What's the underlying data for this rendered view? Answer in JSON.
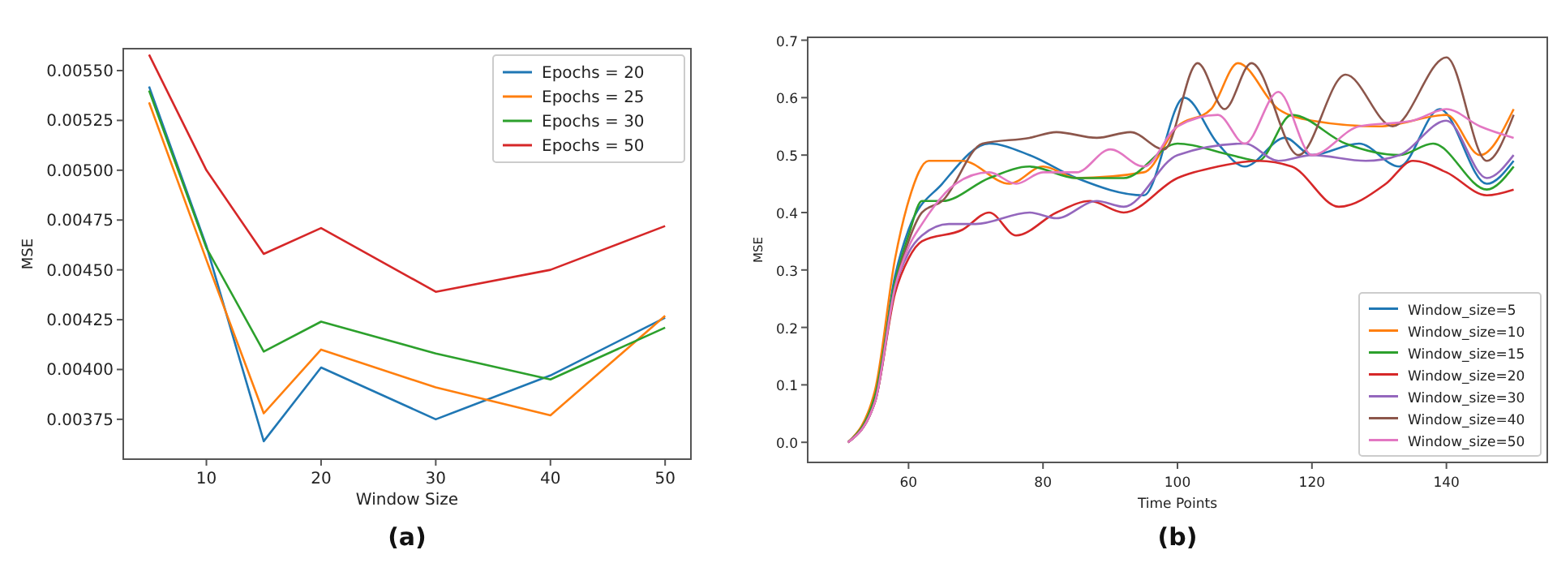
{
  "chart_data": [
    {
      "type": "line",
      "xlabel": "Window Size",
      "ylabel": "MSE",
      "x": [
        5,
        10,
        15,
        20,
        30,
        40,
        50
      ],
      "xlim": [
        2.75,
        52.25
      ],
      "ylim": [
        0.00355,
        0.00561
      ],
      "xticks": [
        10,
        20,
        30,
        40,
        50
      ],
      "yticks": [
        {
          "value": 0.00375,
          "label": "0.00375"
        },
        {
          "value": 0.004,
          "label": "0.00400"
        },
        {
          "value": 0.00425,
          "label": "0.00425"
        },
        {
          "value": 0.0045,
          "label": "0.00450"
        },
        {
          "value": 0.00475,
          "label": "0.00475"
        },
        {
          "value": 0.005,
          "label": "0.00500"
        },
        {
          "value": 0.00525,
          "label": "0.00525"
        },
        {
          "value": 0.0055,
          "label": "0.00550"
        }
      ],
      "legend": "top right",
      "annotations": [
        "(a)"
      ],
      "series": [
        {
          "name": "Epochs = 20",
          "color": "#1f77b4",
          "values": [
            0.00542,
            0.00462,
            0.00364,
            0.00401,
            0.00375,
            0.00397,
            0.00426
          ]
        },
        {
          "name": "Epochs = 25",
          "color": "#ff7f0e",
          "values": [
            0.00534,
            0.00455,
            0.00378,
            0.0041,
            0.00391,
            0.00377,
            0.00427
          ]
        },
        {
          "name": "Epochs = 30",
          "color": "#2ca02c",
          "values": [
            0.0054,
            0.00461,
            0.00409,
            0.00424,
            0.00408,
            0.00395,
            0.00421
          ]
        },
        {
          "name": "Epochs = 50",
          "color": "#d62728",
          "values": [
            0.00558,
            0.005,
            0.00458,
            0.00471,
            0.00439,
            0.0045,
            0.00472
          ]
        }
      ]
    },
    {
      "type": "line",
      "xlabel": "Time Points",
      "ylabel": "MSE",
      "xlim": [
        45,
        155
      ],
      "ylim": [
        -0.035,
        0.705
      ],
      "xticks": [
        60,
        80,
        100,
        120,
        140
      ],
      "yticks": [
        {
          "value": 0,
          "label": "0.0"
        },
        {
          "value": 0.1,
          "label": "0.1"
        },
        {
          "value": 0.2,
          "label": "0.2"
        },
        {
          "value": 0.3,
          "label": "0.3"
        },
        {
          "value": 0.4,
          "label": "0.4"
        },
        {
          "value": 0.5,
          "label": "0.5"
        },
        {
          "value": 0.6,
          "label": "0.6"
        },
        {
          "value": 0.7,
          "label": "0.7"
        }
      ],
      "legend": "bottom right",
      "annotations": [
        "(b)"
      ],
      "series": [
        {
          "name": "Window_size=5",
          "color": "#1f77b4",
          "x": [
            51,
            55,
            58,
            60,
            65,
            72,
            78,
            85,
            95,
            101,
            106,
            110,
            116,
            120,
            127,
            133,
            139,
            146,
            150
          ],
          "values": [
            0,
            0.08,
            0.29,
            0.37,
            0.45,
            0.52,
            0.5,
            0.46,
            0.43,
            0.6,
            0.52,
            0.48,
            0.53,
            0.5,
            0.52,
            0.48,
            0.58,
            0.45,
            0.49
          ]
        },
        {
          "name": "Window_size=10",
          "color": "#ff7f0e",
          "x": [
            51,
            55,
            58,
            60,
            63,
            68,
            75,
            80,
            85,
            95,
            100,
            105,
            109,
            115,
            120,
            130,
            140,
            145,
            150
          ],
          "values": [
            0,
            0.09,
            0.32,
            0.42,
            0.49,
            0.49,
            0.45,
            0.48,
            0.46,
            0.47,
            0.55,
            0.58,
            0.66,
            0.58,
            0.56,
            0.55,
            0.57,
            0.5,
            0.58
          ]
        },
        {
          "name": "Window_size=15",
          "color": "#2ca02c",
          "x": [
            51,
            55,
            58,
            60,
            62,
            65,
            72,
            78,
            85,
            92,
            100,
            108,
            112,
            117,
            125,
            133,
            138,
            146,
            150
          ],
          "values": [
            0,
            0.08,
            0.28,
            0.36,
            0.42,
            0.42,
            0.46,
            0.48,
            0.46,
            0.46,
            0.52,
            0.5,
            0.49,
            0.57,
            0.52,
            0.5,
            0.52,
            0.44,
            0.48
          ]
        },
        {
          "name": "Window_size=20",
          "color": "#d62728",
          "x": [
            51,
            55,
            58,
            60,
            62,
            68,
            72,
            76,
            82,
            87,
            92,
            100,
            106,
            112,
            117,
            124,
            131,
            135,
            140,
            146,
            150
          ],
          "values": [
            0,
            0.07,
            0.26,
            0.32,
            0.35,
            0.37,
            0.4,
            0.36,
            0.4,
            0.42,
            0.4,
            0.46,
            0.48,
            0.49,
            0.48,
            0.41,
            0.45,
            0.49,
            0.47,
            0.43,
            0.44
          ]
        },
        {
          "name": "Window_size=30",
          "color": "#9467bd",
          "x": [
            51,
            55,
            58,
            60,
            62,
            66,
            70,
            78,
            82,
            88,
            92,
            100,
            110,
            115,
            120,
            128,
            133,
            140,
            146,
            150
          ],
          "values": [
            0,
            0.07,
            0.27,
            0.33,
            0.36,
            0.38,
            0.38,
            0.4,
            0.39,
            0.42,
            0.41,
            0.5,
            0.52,
            0.49,
            0.5,
            0.49,
            0.5,
            0.56,
            0.46,
            0.5
          ]
        },
        {
          "name": "Window_size=40",
          "color": "#8c564b",
          "x": [
            51,
            55,
            58,
            60,
            62,
            65,
            71,
            78,
            82,
            88,
            93,
            98,
            103,
            107,
            111,
            118,
            125,
            132,
            140,
            146,
            150
          ],
          "values": [
            0,
            0.07,
            0.27,
            0.35,
            0.4,
            0.42,
            0.52,
            0.53,
            0.54,
            0.53,
            0.54,
            0.51,
            0.66,
            0.58,
            0.66,
            0.5,
            0.64,
            0.55,
            0.67,
            0.49,
            0.57
          ]
        },
        {
          "name": "Window_size=50",
          "color": "#e377c2",
          "x": [
            51,
            55,
            58,
            60,
            62,
            67,
            72,
            76,
            80,
            85,
            90,
            95,
            100,
            106,
            110,
            115,
            120,
            127,
            135,
            140,
            145,
            150
          ],
          "values": [
            0,
            0.07,
            0.27,
            0.34,
            0.38,
            0.45,
            0.47,
            0.45,
            0.47,
            0.47,
            0.51,
            0.48,
            0.55,
            0.57,
            0.52,
            0.61,
            0.5,
            0.55,
            0.56,
            0.58,
            0.55,
            0.53
          ]
        }
      ]
    }
  ]
}
